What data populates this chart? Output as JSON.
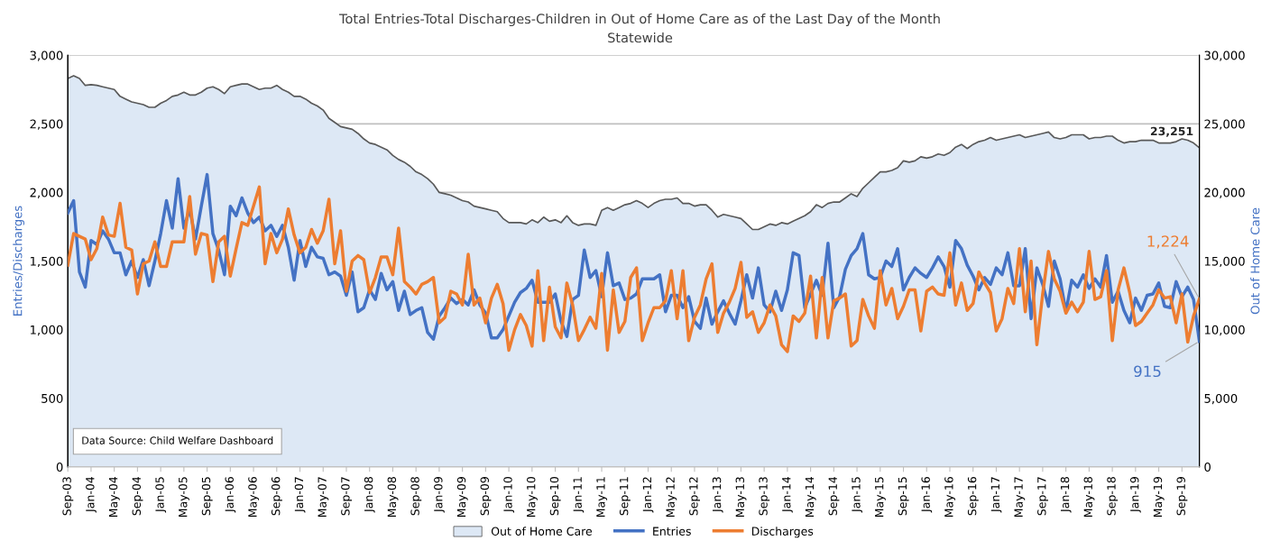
{
  "chart_data": {
    "type": "line",
    "title": "Total Entries-Total Discharges-Children in Out of Home Care as of the Last Day of the Month",
    "subtitle": "Statewide",
    "ylabel": "Entries/Discharges",
    "y2label": "Out of Home Care",
    "annotations": [
      "Data Source: Child Welfare Dashboard"
    ],
    "categories": [
      "Sep-03",
      null,
      null,
      null,
      "Jan-04",
      null,
      null,
      null,
      "May-04",
      null,
      null,
      null,
      "Sep-04",
      null,
      null,
      null,
      "Jan-05",
      null,
      null,
      null,
      "May-05",
      null,
      null,
      null,
      "Sep-05",
      null,
      null,
      null,
      "Jan-06",
      null,
      null,
      null,
      "May-06",
      null,
      null,
      null,
      "Sep-06",
      null,
      null,
      null,
      "Jan-07",
      null,
      null,
      null,
      "May-07",
      null,
      null,
      null,
      "Sep-07",
      null,
      null,
      null,
      "Jan-08",
      null,
      null,
      null,
      "May-08",
      null,
      null,
      null,
      "Sep-08",
      null,
      null,
      null,
      "Jan-09",
      null,
      null,
      null,
      "May-09",
      null,
      null,
      null,
      "Sep-09",
      null,
      null,
      null,
      "Jan-10",
      null,
      null,
      null,
      "May-10",
      null,
      null,
      null,
      "Sep-10",
      null,
      null,
      null,
      "Jan-11",
      null,
      null,
      null,
      "May-11",
      null,
      null,
      null,
      "Sep-11",
      null,
      null,
      null,
      "Jan-12",
      null,
      null,
      null,
      "May-12",
      null,
      null,
      null,
      "Sep-12",
      null,
      null,
      null,
      "Jan-13",
      null,
      null,
      null,
      "May-13",
      null,
      null,
      null,
      "Sep-13",
      null,
      null,
      null,
      "Jan-14",
      null,
      null,
      null,
      "May-14",
      null,
      null,
      null,
      "Sep-14",
      null,
      null,
      null,
      "Jan-15",
      null,
      null,
      null,
      "May-15",
      null,
      null,
      null,
      "Sep-15",
      null,
      null,
      null,
      "Jan-16",
      null,
      null,
      null,
      "May-16",
      null,
      null,
      null,
      "Sep-16",
      null,
      null,
      null,
      "Jan-17",
      null,
      null,
      null,
      "May-17",
      null,
      null,
      null,
      "Sep-17",
      null,
      null,
      null,
      "Jan-18",
      null,
      null,
      null,
      "May-18",
      null,
      null,
      null,
      "Sep-18",
      null,
      null,
      null,
      "Jan-19",
      null,
      null,
      null,
      "May-19",
      null,
      null,
      null,
      "Sep-19",
      null,
      null,
      null
    ],
    "series": [
      {
        "name": "Out of Home Care",
        "type": "area",
        "axis": "y2",
        "color": "#dde8f5",
        "values": [
          28300,
          28500,
          28300,
          27800,
          27850,
          27800,
          27700,
          27600,
          27500,
          27000,
          26800,
          26600,
          26500,
          26400,
          26200,
          26200,
          26500,
          26700,
          27000,
          27100,
          27300,
          27100,
          27100,
          27300,
          27600,
          27700,
          27500,
          27200,
          27700,
          27800,
          27900,
          27900,
          27700,
          27500,
          27600,
          27600,
          27800,
          27500,
          27300,
          27000,
          27000,
          26800,
          26500,
          26300,
          26000,
          25400,
          25100,
          24800,
          24700,
          24600,
          24300,
          23900,
          23600,
          23500,
          23300,
          23100,
          22700,
          22400,
          22200,
          21900,
          21500,
          21300,
          21000,
          20600,
          20000,
          19900,
          19800,
          19600,
          19400,
          19300,
          19000,
          18900,
          18800,
          18700,
          18600,
          18100,
          17800,
          17800,
          17800,
          17700,
          18000,
          17800,
          18200,
          17900,
          18000,
          17800,
          18300,
          17800,
          17600,
          17700,
          17700,
          17600,
          18700,
          18900,
          18700,
          18900,
          19100,
          19200,
          19400,
          19200,
          18900,
          19200,
          19400,
          19500,
          19500,
          19600,
          19200,
          19200,
          19000,
          19100,
          19100,
          18700,
          18200,
          18400,
          18300,
          18200,
          18100,
          17700,
          17300,
          17300,
          17500,
          17700,
          17600,
          17800,
          17700,
          17900,
          18100,
          18300,
          18600,
          19100,
          18900,
          19200,
          19300,
          19300,
          19600,
          19900,
          19700,
          20300,
          20700,
          21100,
          21500,
          21500,
          21600,
          21800,
          22300,
          22200,
          22300,
          22600,
          22500,
          22600,
          22800,
          22700,
          22900,
          23300,
          23500,
          23200,
          23500,
          23700,
          23800,
          24000,
          23800,
          23900,
          24000,
          24100,
          24200,
          24000,
          24100,
          24200,
          24300,
          24400,
          24000,
          23900,
          24000,
          24200,
          24200,
          24200,
          23900,
          24000,
          24000,
          24100,
          24100,
          23800,
          23600,
          23700,
          23700,
          23800,
          23800,
          23800,
          23600,
          23600,
          23600,
          23700,
          23900,
          23800,
          23600,
          23251
        ],
        "value_labels": [
          null,
          null,
          null,
          null,
          null,
          null,
          null,
          null,
          null,
          null,
          null,
          null,
          null,
          null,
          null,
          null,
          null,
          null,
          null,
          null,
          null,
          null,
          null,
          null,
          null,
          null,
          null,
          null,
          null,
          null,
          null,
          null,
          null,
          null,
          null,
          null,
          null,
          null,
          null,
          null,
          null,
          null,
          null,
          null,
          null,
          null,
          null,
          null,
          null,
          null,
          null,
          null,
          null,
          null,
          null,
          null,
          null,
          null,
          null,
          null,
          null,
          null,
          null,
          null,
          null,
          null,
          null,
          null,
          null,
          null,
          null,
          null,
          null,
          null,
          null,
          null,
          null,
          null,
          null,
          null,
          null,
          null,
          null,
          null,
          null,
          null,
          null,
          null,
          null,
          null,
          null,
          null,
          null,
          null,
          null,
          null,
          null,
          null,
          null,
          null,
          null,
          null,
          null,
          null,
          null,
          null,
          null,
          null,
          null,
          null,
          null,
          null,
          null,
          null,
          null,
          null,
          null,
          null,
          null,
          null,
          null,
          null,
          null,
          null,
          null,
          null,
          null,
          null,
          null,
          null,
          null,
          null,
          null,
          null,
          null,
          null,
          null,
          null,
          null,
          null,
          null,
          null,
          null,
          null,
          null,
          null,
          null,
          null,
          null,
          null,
          null,
          null,
          null,
          null,
          null,
          null,
          null,
          null,
          null,
          null,
          null,
          null,
          null,
          null,
          null,
          null,
          null,
          null,
          null,
          null,
          null,
          null,
          null,
          null,
          null,
          null,
          null,
          null,
          null,
          null,
          null,
          null,
          null,
          null,
          null,
          null,
          null,
          null,
          null,
          null,
          null,
          null,
          null,
          null,
          null,
          "23,251"
        ]
      },
      {
        "name": "Entries",
        "color": "#4472c4",
        "values": [
          1850,
          1940,
          1420,
          1310,
          1650,
          1620,
          1720,
          1660,
          1560,
          1560,
          1400,
          1500,
          1380,
          1510,
          1320,
          1500,
          1700,
          1940,
          1740,
          2100,
          1740,
          1880,
          1660,
          1900,
          2130,
          1700,
          1580,
          1400,
          1900,
          1830,
          1960,
          1850,
          1780,
          1820,
          1720,
          1760,
          1680,
          1760,
          1600,
          1360,
          1650,
          1460,
          1600,
          1530,
          1520,
          1400,
          1420,
          1390,
          1250,
          1420,
          1130,
          1160,
          1290,
          1220,
          1410,
          1290,
          1350,
          1140,
          1280,
          1110,
          1140,
          1160,
          980,
          930,
          1100,
          1160,
          1230,
          1190,
          1220,
          1180,
          1290,
          1180,
          1120,
          940,
          940,
          1000,
          1100,
          1200,
          1270,
          1300,
          1360,
          1200,
          1200,
          1200,
          1260,
          1060,
          950,
          1220,
          1250,
          1580,
          1380,
          1430,
          1240,
          1560,
          1320,
          1340,
          1220,
          1230,
          1260,
          1370,
          1370,
          1370,
          1400,
          1130,
          1250,
          1250,
          1160,
          1240,
          1060,
          1010,
          1230,
          1040,
          1130,
          1210,
          1120,
          1040,
          1210,
          1400,
          1230,
          1450,
          1180,
          1130,
          1280,
          1140,
          1290,
          1560,
          1540,
          1160,
          1260,
          1360,
          1250,
          1630,
          1160,
          1240,
          1440,
          1540,
          1590,
          1700,
          1400,
          1370,
          1380,
          1500,
          1460,
          1590,
          1290,
          1380,
          1450,
          1410,
          1380,
          1450,
          1530,
          1460,
          1310,
          1650,
          1590,
          1470,
          1390,
          1290,
          1380,
          1330,
          1450,
          1400,
          1560,
          1320,
          1320,
          1590,
          1080,
          1450,
          1330,
          1170,
          1500,
          1370,
          1130,
          1360,
          1310,
          1400,
          1300,
          1370,
          1310,
          1540,
          1200,
          1280,
          1140,
          1050,
          1230,
          1140,
          1250,
          1260,
          1340,
          1170,
          1160,
          1350,
          1240,
          1310,
          1220,
          915
        ],
        "value_labels": [
          null,
          null,
          null,
          null,
          null,
          null,
          null,
          null,
          null,
          null,
          null,
          null,
          null,
          null,
          null,
          null,
          null,
          null,
          null,
          null,
          null,
          null,
          null,
          null,
          null,
          null,
          null,
          null,
          null,
          null,
          null,
          null,
          null,
          null,
          null,
          null,
          null,
          null,
          null,
          null,
          null,
          null,
          null,
          null,
          null,
          null,
          null,
          null,
          null,
          null,
          null,
          null,
          null,
          null,
          null,
          null,
          null,
          null,
          null,
          null,
          null,
          null,
          null,
          null,
          null,
          null,
          null,
          null,
          null,
          null,
          null,
          null,
          null,
          null,
          null,
          null,
          null,
          null,
          null,
          null,
          null,
          null,
          null,
          null,
          null,
          null,
          null,
          null,
          null,
          null,
          null,
          null,
          null,
          null,
          null,
          null,
          null,
          null,
          null,
          null,
          null,
          null,
          null,
          null,
          null,
          null,
          null,
          null,
          null,
          null,
          null,
          null,
          null,
          null,
          null,
          null,
          null,
          null,
          null,
          null,
          null,
          null,
          null,
          null,
          null,
          null,
          null,
          null,
          null,
          null,
          null,
          null,
          null,
          null,
          null,
          null,
          null,
          null,
          null,
          null,
          null,
          null,
          null,
          null,
          null,
          null,
          null,
          null,
          null,
          null,
          null,
          null,
          null,
          null,
          null,
          null,
          null,
          null,
          null,
          null,
          null,
          null,
          null,
          null,
          null,
          null,
          null,
          null,
          null,
          null,
          null,
          null,
          null,
          null,
          null,
          null,
          null,
          null,
          null,
          null,
          null,
          null,
          null,
          null,
          null,
          null,
          null,
          null,
          null,
          null,
          null,
          null,
          null,
          null,
          null,
          "915"
        ]
      },
      {
        "name": "Discharges",
        "color": "#ed7d31",
        "values": [
          1470,
          1700,
          1680,
          1660,
          1510,
          1590,
          1820,
          1690,
          1680,
          1920,
          1600,
          1580,
          1260,
          1480,
          1500,
          1640,
          1460,
          1460,
          1640,
          1640,
          1640,
          1970,
          1550,
          1700,
          1690,
          1350,
          1640,
          1680,
          1390,
          1590,
          1780,
          1760,
          1900,
          2040,
          1480,
          1700,
          1560,
          1660,
          1880,
          1690,
          1560,
          1600,
          1730,
          1630,
          1720,
          1950,
          1480,
          1720,
          1280,
          1500,
          1540,
          1510,
          1270,
          1380,
          1530,
          1530,
          1400,
          1740,
          1350,
          1310,
          1260,
          1330,
          1350,
          1380,
          1050,
          1090,
          1280,
          1260,
          1180,
          1550,
          1180,
          1230,
          1050,
          1230,
          1330,
          1190,
          850,
          1000,
          1110,
          1030,
          880,
          1430,
          920,
          1310,
          1020,
          940,
          1340,
          1180,
          920,
          1000,
          1090,
          1010,
          1410,
          850,
          1290,
          980,
          1060,
          1380,
          1450,
          920,
          1050,
          1160,
          1160,
          1210,
          1430,
          1080,
          1430,
          920,
          1090,
          1180,
          1370,
          1480,
          980,
          1120,
          1200,
          1300,
          1490,
          1090,
          1130,
          980,
          1050,
          1180,
          1100,
          890,
          840,
          1100,
          1060,
          1120,
          1390,
          940,
          1380,
          940,
          1210,
          1230,
          1260,
          880,
          920,
          1220,
          1100,
          1010,
          1430,
          1180,
          1300,
          1080,
          1170,
          1290,
          1290,
          990,
          1280,
          1310,
          1260,
          1250,
          1560,
          1180,
          1340,
          1140,
          1190,
          1420,
          1340,
          1270,
          990,
          1080,
          1300,
          1190,
          1590,
          1130,
          1500,
          890,
          1260,
          1570,
          1370,
          1280,
          1120,
          1200,
          1130,
          1200,
          1570,
          1220,
          1240,
          1430,
          920,
          1290,
          1450,
          1270,
          1030,
          1060,
          1120,
          1180,
          1290,
          1230,
          1240,
          1050,
          1260,
          910,
          1100,
          1224
        ],
        "value_labels": [
          null,
          null,
          null,
          null,
          null,
          null,
          null,
          null,
          null,
          null,
          null,
          null,
          null,
          null,
          null,
          null,
          null,
          null,
          null,
          null,
          null,
          null,
          null,
          null,
          null,
          null,
          null,
          null,
          null,
          null,
          null,
          null,
          null,
          null,
          null,
          null,
          null,
          null,
          null,
          null,
          null,
          null,
          null,
          null,
          null,
          null,
          null,
          null,
          null,
          null,
          null,
          null,
          null,
          null,
          null,
          null,
          null,
          null,
          null,
          null,
          null,
          null,
          null,
          null,
          null,
          null,
          null,
          null,
          null,
          null,
          null,
          null,
          null,
          null,
          null,
          null,
          null,
          null,
          null,
          null,
          null,
          null,
          null,
          null,
          null,
          null,
          null,
          null,
          null,
          null,
          null,
          null,
          null,
          null,
          null,
          null,
          null,
          null,
          null,
          null,
          null,
          null,
          null,
          null,
          null,
          null,
          null,
          null,
          null,
          null,
          null,
          null,
          null,
          null,
          null,
          null,
          null,
          null,
          null,
          null,
          null,
          null,
          null,
          null,
          null,
          null,
          null,
          null,
          null,
          null,
          null,
          null,
          null,
          null,
          null,
          null,
          null,
          null,
          null,
          null,
          null,
          null,
          null,
          null,
          null,
          null,
          null,
          null,
          null,
          null,
          null,
          null,
          null,
          null,
          null,
          null,
          null,
          null,
          null,
          null,
          null,
          null,
          null,
          null,
          null,
          null,
          null,
          null,
          null,
          null,
          null,
          null,
          null,
          null,
          null,
          null,
          null,
          null,
          null,
          null,
          null,
          null,
          null,
          null,
          null,
          null,
          null,
          null,
          null,
          null,
          null,
          null,
          null,
          null,
          null,
          "1,224"
        ]
      }
    ],
    "ylim": [
      0,
      3000
    ],
    "yticks": [
      0,
      500,
      {
        "value": 1000,
        "label": "1,000"
      },
      {
        "value": 1500,
        "label": "1,500"
      },
      {
        "value": 2000,
        "label": "2,000"
      },
      {
        "value": 2500,
        "label": "2,500"
      },
      {
        "value": 3000,
        "label": "3,000"
      }
    ],
    "y2lim": [
      0,
      30000
    ],
    "y2ticks": [
      0,
      {
        "value": 5000,
        "label": "5,000"
      },
      {
        "value": 10000,
        "label": "10,000"
      },
      {
        "value": 15000,
        "label": "15,000"
      },
      {
        "value": 20000,
        "label": "20,000"
      },
      {
        "value": 25000,
        "label": "25,000"
      },
      {
        "value": 30000,
        "label": "30,000"
      }
    ],
    "grid": "y",
    "legend": "bottom",
    "marker": "none",
    "line_style": "solid"
  }
}
